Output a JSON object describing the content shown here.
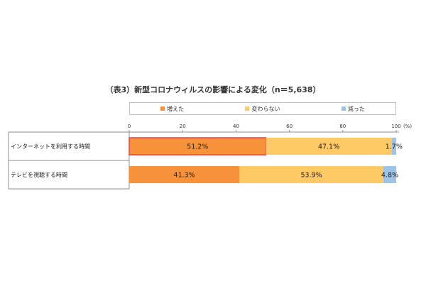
{
  "chart_data": {
    "type": "bar",
    "orientation": "horizontal-stacked-100",
    "title": "（表3）新型コロナウィルスの影響による変化（n＝5,638）",
    "categories": [
      "インターネットを利用する時間",
      "テレビを視聴する時間"
    ],
    "series": [
      {
        "name": "増えた",
        "color": "#f7923a",
        "values": [
          51.2,
          41.3
        ],
        "labels": [
          "51.2%",
          "41.3%"
        ]
      },
      {
        "name": "変わらない",
        "color": "#ffc966",
        "values": [
          47.1,
          53.9
        ],
        "labels": [
          "47.1%",
          "53.9%"
        ]
      },
      {
        "name": "減った",
        "color": "#9dc3e6",
        "values": [
          1.7,
          4.8
        ],
        "labels": [
          "1.7%",
          "4.8%"
        ]
      }
    ],
    "x_ticks": [
      "0",
      "20",
      "40",
      "60",
      "80",
      "100"
    ],
    "x_unit_label": "(%)",
    "xlim": [
      0,
      100
    ],
    "legend_position": "top",
    "grid": false,
    "highlight": {
      "category_index": 0,
      "series_index": 0,
      "color": "#e8423c"
    }
  }
}
